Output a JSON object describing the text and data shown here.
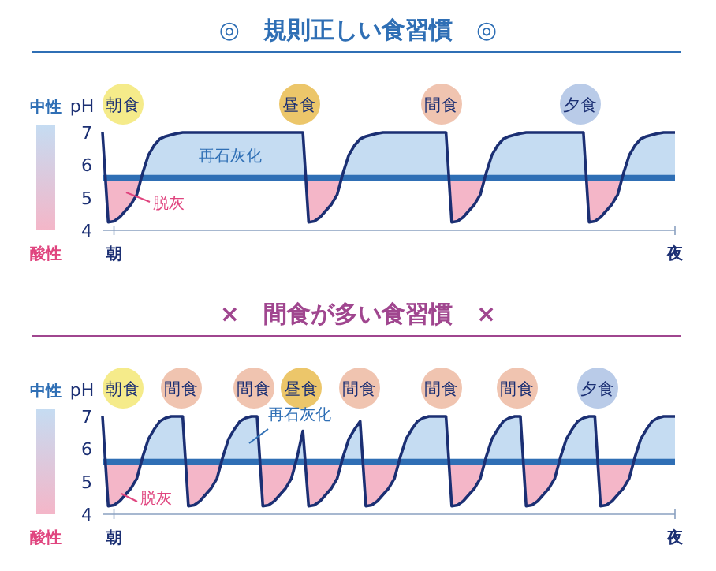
{
  "chart_data": [
    {
      "type": "line",
      "title": "◎　規則正しい食習慣　◎",
      "ylabel": "pH",
      "ylim": [
        4,
        7
      ],
      "yticks": [
        4,
        5,
        6,
        7
      ],
      "categories": [
        null,
        null,
        "朝",
        null,
        null,
        null,
        null,
        null,
        null,
        null,
        null,
        null,
        null,
        null,
        null,
        null,
        null,
        null,
        null,
        null,
        null,
        null,
        null,
        null,
        null,
        null,
        null,
        null,
        null,
        null,
        null,
        null,
        null,
        null,
        null,
        null,
        null,
        null,
        null,
        null,
        null,
        null,
        null,
        null,
        null,
        null,
        null,
        null,
        null,
        null,
        null,
        null,
        null,
        null,
        null,
        null,
        null,
        null,
        null,
        null,
        null,
        null,
        null,
        null,
        null,
        null,
        null,
        null,
        null,
        null,
        null,
        null,
        null,
        null,
        null,
        null,
        null,
        null,
        null,
        null,
        null,
        null,
        null,
        null,
        null,
        null,
        null,
        null,
        null,
        null,
        null,
        null,
        null,
        null,
        null,
        null,
        null,
        null,
        null,
        null,
        "夜"
      ],
      "bands": [
        {
          "axis": "y",
          "from": 5.5,
          "to": 5.7,
          "color": "#2f6fb5"
        }
      ],
      "series": [
        {
          "color": "#1b2f73",
          "values": [
            7.0,
            4.25,
            4.28,
            4.4,
            4.6,
            4.8,
            5.1,
            5.75,
            6.3,
            6.6,
            6.8,
            6.88,
            6.93,
            6.97,
            7.0,
            7.0,
            7.0,
            7.0,
            7.0,
            7.0,
            7.0,
            7.0,
            7.0,
            7.0,
            7.0,
            7.0,
            7.0,
            7.0,
            7.0,
            7.0,
            7.0,
            7.0,
            7.0,
            7.0,
            7.0,
            7.0,
            4.25,
            4.28,
            4.4,
            4.6,
            4.8,
            5.1,
            5.75,
            6.3,
            6.6,
            6.8,
            6.88,
            6.93,
            6.97,
            7.0,
            7.0,
            7.0,
            7.0,
            7.0,
            7.0,
            7.0,
            7.0,
            7.0,
            7.0,
            7.0,
            7.0,
            4.25,
            4.28,
            4.4,
            4.6,
            4.8,
            5.1,
            5.75,
            6.3,
            6.6,
            6.8,
            6.88,
            6.93,
            6.97,
            7.0,
            7.0,
            7.0,
            7.0,
            7.0,
            7.0,
            7.0,
            7.0,
            7.0,
            7.0,
            7.0,
            4.25,
            4.28,
            4.4,
            4.6,
            4.8,
            5.1,
            5.75,
            6.3,
            6.6,
            6.8,
            6.88,
            6.93,
            6.97,
            7.0,
            7.0,
            7.0
          ]
        }
      ],
      "annotations": [
        "中性",
        "酸性",
        "朝食",
        "昼食",
        "間食",
        "夕食",
        "再石灰化",
        "脱灰"
      ]
    },
    {
      "type": "line",
      "title": "×　間食が多い食習慣　×",
      "ylabel": "pH",
      "ylim": [
        4,
        7
      ],
      "yticks": [
        4,
        5,
        6,
        7
      ],
      "categories": [
        null,
        null,
        "朝",
        null,
        null,
        null,
        null,
        null,
        null,
        null,
        null,
        null,
        null,
        null,
        null,
        null,
        null,
        null,
        null,
        null,
        null,
        null,
        null,
        null,
        null,
        null,
        null,
        null,
        null,
        null,
        null,
        null,
        null,
        null,
        null,
        null,
        null,
        null,
        null,
        null,
        null,
        null,
        null,
        null,
        null,
        null,
        null,
        null,
        null,
        null,
        null,
        null,
        null,
        null,
        null,
        null,
        null,
        null,
        null,
        null,
        null,
        null,
        null,
        null,
        null,
        null,
        null,
        null,
        null,
        null,
        null,
        null,
        null,
        null,
        null,
        null,
        null,
        null,
        null,
        null,
        null,
        null,
        null,
        null,
        null,
        null,
        null,
        null,
        null,
        null,
        null,
        null,
        null,
        null,
        null,
        null,
        null,
        null,
        null,
        null,
        "夜"
      ],
      "bands": [
        {
          "axis": "y",
          "from": 5.5,
          "to": 5.7,
          "color": "#2f6fb5"
        }
      ],
      "series": [
        {
          "color": "#1b2f73",
          "values": [
            7.0,
            4.25,
            4.28,
            4.4,
            4.6,
            4.8,
            5.1,
            5.75,
            6.3,
            6.6,
            6.85,
            6.95,
            7.0,
            7.0,
            7.0,
            4.25,
            4.28,
            4.4,
            4.6,
            4.8,
            5.1,
            5.75,
            6.3,
            6.6,
            6.85,
            6.95,
            7.0,
            7.0,
            4.25,
            4.28,
            4.4,
            4.6,
            4.8,
            5.1,
            5.75,
            6.55,
            4.25,
            4.28,
            4.4,
            4.6,
            4.8,
            5.1,
            5.75,
            6.3,
            6.6,
            6.85,
            4.25,
            4.28,
            4.4,
            4.6,
            4.8,
            5.1,
            5.75,
            6.3,
            6.6,
            6.85,
            6.95,
            7.0,
            7.0,
            7.0,
            7.0,
            4.25,
            4.28,
            4.4,
            4.6,
            4.8,
            5.1,
            5.75,
            6.3,
            6.6,
            6.85,
            6.95,
            7.0,
            7.0,
            4.25,
            4.28,
            4.4,
            4.6,
            4.8,
            5.1,
            5.75,
            6.3,
            6.6,
            6.85,
            6.95,
            7.0,
            7.0,
            4.25,
            4.28,
            4.4,
            4.6,
            4.8,
            5.1,
            5.75,
            6.3,
            6.6,
            6.85,
            6.95,
            7.0,
            7.0,
            7.0
          ]
        }
      ],
      "annotations": [
        "中性",
        "酸性",
        "朝食",
        "間食",
        "間食",
        "昼食",
        "間食",
        "間食",
        "間食",
        "夕食",
        "再石灰化",
        "脱灰"
      ]
    }
  ]
}
